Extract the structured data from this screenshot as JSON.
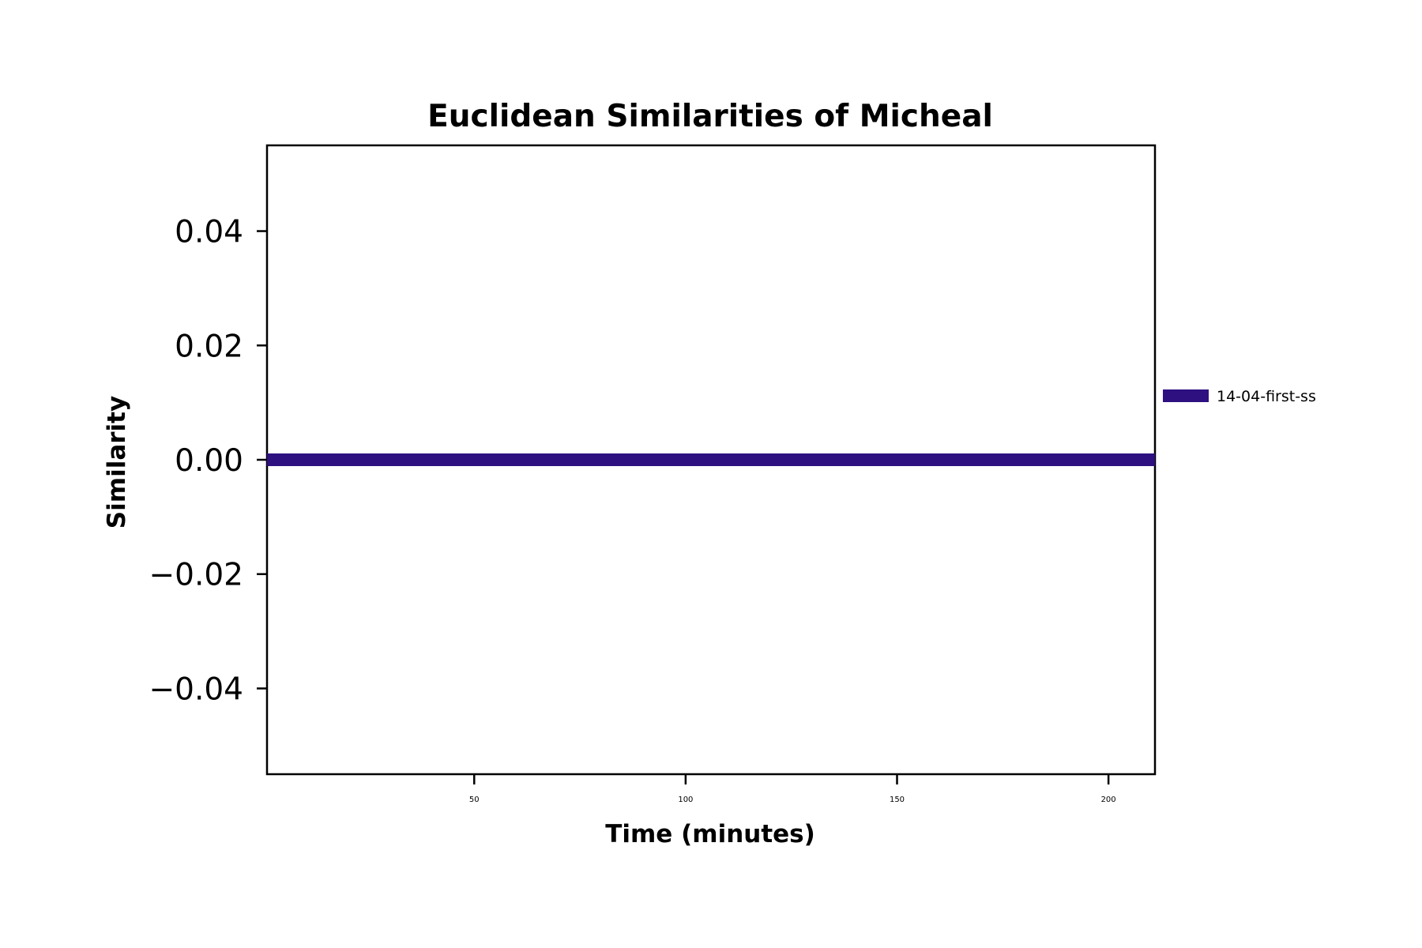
{
  "chart_data": {
    "type": "line",
    "title": "Euclidean Similarities of Micheal",
    "xlabel": "Time (minutes)",
    "ylabel": "Similarity",
    "xlim": [
      1,
      211
    ],
    "ylim": [
      -0.055,
      0.055
    ],
    "xticks": [
      50,
      100,
      150,
      200
    ],
    "xtick_labels": [
      "50",
      "100",
      "150",
      "200"
    ],
    "yticks": [
      0.04,
      0.02,
      0.0,
      -0.02,
      -0.04
    ],
    "ytick_labels": [
      "0.04",
      "0.02",
      "0.00",
      "−0.02",
      "−0.04"
    ],
    "grid": false,
    "legend_position": "right",
    "series": [
      {
        "name": "14-04-first-ss",
        "color": "#2e1080",
        "x": [
          1,
          211
        ],
        "y": [
          0.0,
          0.0
        ]
      }
    ]
  }
}
